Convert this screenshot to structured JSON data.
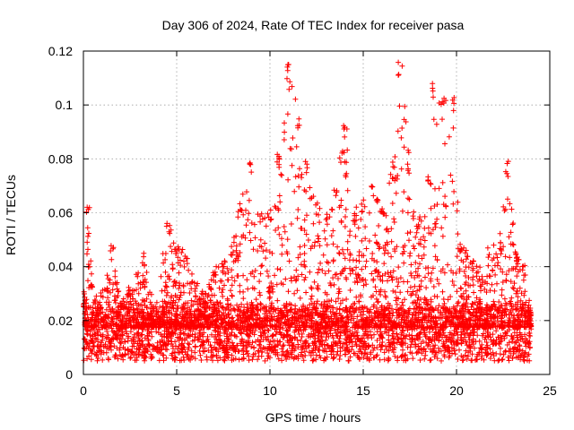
{
  "chart_data": {
    "type": "scatter",
    "title": "Day 306 of 2024, Rate Of TEC Index for receiver pasa",
    "xlabel": "GPS time / hours",
    "ylabel": "ROTI / TECUs",
    "xlim": [
      0,
      25
    ],
    "ylim": [
      0,
      0.12
    ],
    "xticks": [
      "0",
      "5",
      "10",
      "15",
      "20",
      "25"
    ],
    "yticks": [
      "0",
      "0.02",
      "0.04",
      "0.06",
      "0.08",
      "0.1",
      "0.12"
    ],
    "xtick_values": [
      0,
      5,
      10,
      15,
      20,
      25
    ],
    "ytick_values": [
      0,
      0.02,
      0.04,
      0.06,
      0.08,
      0.1,
      0.12
    ],
    "grid": true,
    "marker": "+",
    "color": "#ff0000",
    "x_extent": [
      0,
      24
    ],
    "baseline_band": [
      0.005,
      0.025
    ],
    "envelope": [
      {
        "x": 0.0,
        "y": 0.03
      },
      {
        "x": 0.2,
        "y": 0.064
      },
      {
        "x": 0.5,
        "y": 0.035
      },
      {
        "x": 1.0,
        "y": 0.03
      },
      {
        "x": 1.5,
        "y": 0.05
      },
      {
        "x": 2.0,
        "y": 0.028
      },
      {
        "x": 2.5,
        "y": 0.033
      },
      {
        "x": 3.2,
        "y": 0.045
      },
      {
        "x": 3.8,
        "y": 0.025
      },
      {
        "x": 4.5,
        "y": 0.057
      },
      {
        "x": 5.0,
        "y": 0.05
      },
      {
        "x": 5.5,
        "y": 0.046
      },
      {
        "x": 6.0,
        "y": 0.035
      },
      {
        "x": 6.5,
        "y": 0.03
      },
      {
        "x": 7.0,
        "y": 0.04
      },
      {
        "x": 7.5,
        "y": 0.042
      },
      {
        "x": 8.0,
        "y": 0.05
      },
      {
        "x": 8.4,
        "y": 0.066
      },
      {
        "x": 9.0,
        "y": 0.079
      },
      {
        "x": 9.5,
        "y": 0.06
      },
      {
        "x": 10.0,
        "y": 0.06
      },
      {
        "x": 10.5,
        "y": 0.082
      },
      {
        "x": 11.0,
        "y": 0.117
      },
      {
        "x": 11.5,
        "y": 0.097
      },
      {
        "x": 12.0,
        "y": 0.08
      },
      {
        "x": 12.5,
        "y": 0.065
      },
      {
        "x": 13.0,
        "y": 0.06
      },
      {
        "x": 13.5,
        "y": 0.07
      },
      {
        "x": 14.0,
        "y": 0.095
      },
      {
        "x": 14.5,
        "y": 0.062
      },
      {
        "x": 15.0,
        "y": 0.065
      },
      {
        "x": 15.5,
        "y": 0.07
      },
      {
        "x": 16.0,
        "y": 0.064
      },
      {
        "x": 16.5,
        "y": 0.075
      },
      {
        "x": 17.0,
        "y": 0.116
      },
      {
        "x": 17.5,
        "y": 0.08
      },
      {
        "x": 18.0,
        "y": 0.06
      },
      {
        "x": 18.5,
        "y": 0.075
      },
      {
        "x": 18.8,
        "y": 0.108
      },
      {
        "x": 19.3,
        "y": 0.104
      },
      {
        "x": 19.8,
        "y": 0.103
      },
      {
        "x": 20.2,
        "y": 0.05
      },
      {
        "x": 20.8,
        "y": 0.045
      },
      {
        "x": 21.2,
        "y": 0.04
      },
      {
        "x": 21.8,
        "y": 0.048
      },
      {
        "x": 22.3,
        "y": 0.05
      },
      {
        "x": 22.7,
        "y": 0.08
      },
      {
        "x": 23.2,
        "y": 0.045
      },
      {
        "x": 23.6,
        "y": 0.042
      },
      {
        "x": 24.0,
        "y": 0.025
      }
    ]
  }
}
